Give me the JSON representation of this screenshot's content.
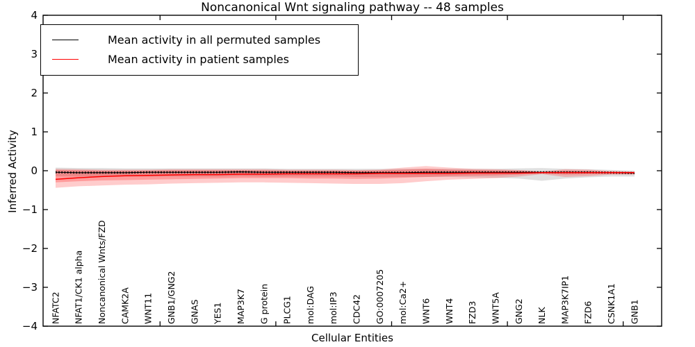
{
  "title": "Noncanonical Wnt signaling pathway -- 48 samples",
  "axes": {
    "x_label": "Cellular Entities",
    "y_label": "Inferred Activity"
  },
  "legend": {
    "items": [
      {
        "label": "Mean activity in all permuted samples",
        "color": "#000000"
      },
      {
        "label": "Mean activity in patient samples",
        "color": "#ff0000"
      }
    ]
  },
  "colors": {
    "permuted_line": "#000000",
    "patient_line": "#ff0000",
    "permuted_band": "#bbbbbb",
    "patient_band": "#ff0000",
    "frame": "#000000"
  },
  "chart_data": {
    "type": "line",
    "title": "Noncanonical Wnt signaling pathway -- 48 samples",
    "xlabel": "Cellular Entities",
    "ylabel": "Inferred Activity",
    "ylim": [
      -4,
      4
    ],
    "y_ticks": [
      -4,
      -3,
      -2,
      -1,
      0,
      1,
      2,
      3,
      4
    ],
    "major_tick_indices": [
      4,
      9,
      14,
      19,
      24
    ],
    "grid": false,
    "legend_position": "upper left",
    "categories": [
      "NFATC2",
      "NFAT1/CK1 alpha",
      "Noncanonical Wnts/FZD",
      "CAMK2A",
      "WNT11",
      "GNB1/GNG2",
      "GNAS",
      "YES1",
      "MAP3K7",
      "G protein",
      "PLCG1",
      "mol:DAG",
      "mol:IP3",
      "CDC42",
      "GO:0007205",
      "mol:Ca2+",
      "WNT6",
      "WNT4",
      "FZD3",
      "WNT5A",
      "GNG2",
      "NLK",
      "MAP3K7IP1",
      "FZD6",
      "CSNK1A1",
      "GNB1"
    ],
    "series": [
      {
        "name": "Mean activity in all permuted samples",
        "color": "#000000",
        "values": [
          -0.04,
          -0.05,
          -0.05,
          -0.05,
          -0.04,
          -0.04,
          -0.04,
          -0.04,
          -0.03,
          -0.04,
          -0.04,
          -0.04,
          -0.04,
          -0.05,
          -0.05,
          -0.05,
          -0.04,
          -0.04,
          -0.04,
          -0.04,
          -0.04,
          -0.04,
          -0.04,
          -0.04,
          -0.05,
          -0.06
        ]
      },
      {
        "name": "Mean activity in patient samples",
        "color": "#ff0000",
        "values": [
          -0.22,
          -0.18,
          -0.15,
          -0.13,
          -0.12,
          -0.11,
          -0.1,
          -0.1,
          -0.09,
          -0.09,
          -0.08,
          -0.08,
          -0.08,
          -0.08,
          -0.07,
          -0.07,
          -0.07,
          -0.07,
          -0.06,
          -0.06,
          -0.06,
          -0.05,
          -0.05,
          -0.05,
          -0.05,
          -0.05
        ]
      }
    ],
    "bands": {
      "permuted": {
        "hi": [
          0.08,
          0.07,
          0.07,
          0.06,
          0.06,
          0.06,
          0.06,
          0.06,
          0.06,
          0.06,
          0.05,
          0.05,
          0.05,
          0.05,
          0.05,
          0.05,
          0.05,
          0.05,
          0.05,
          0.05,
          0.06,
          0.07,
          0.05,
          0.04,
          0.02,
          0.0
        ],
        "lo": [
          -0.14,
          -0.15,
          -0.15,
          -0.15,
          -0.15,
          -0.15,
          -0.15,
          -0.15,
          -0.14,
          -0.15,
          -0.15,
          -0.15,
          -0.15,
          -0.16,
          -0.16,
          -0.16,
          -0.16,
          -0.16,
          -0.17,
          -0.18,
          -0.2,
          -0.26,
          -0.2,
          -0.17,
          -0.15,
          -0.15
        ]
      },
      "patient_outer": {
        "hi": [
          0.05,
          0.04,
          0.03,
          0.03,
          0.03,
          0.04,
          0.04,
          0.04,
          0.04,
          0.04,
          0.03,
          0.03,
          0.03,
          0.02,
          0.03,
          0.08,
          0.12,
          0.08,
          0.05,
          0.04,
          0.02,
          -0.02,
          0.04,
          0.03,
          -0.01,
          -0.02
        ],
        "lo": [
          -0.44,
          -0.4,
          -0.38,
          -0.36,
          -0.35,
          -0.33,
          -0.32,
          -0.31,
          -0.3,
          -0.3,
          -0.31,
          -0.32,
          -0.33,
          -0.34,
          -0.34,
          -0.32,
          -0.27,
          -0.23,
          -0.21,
          -0.19,
          -0.15,
          -0.09,
          -0.16,
          -0.14,
          -0.1,
          -0.1
        ]
      },
      "patient_inner": {
        "hi": [
          0.02,
          0.01,
          0.0,
          0.0,
          0.0,
          0.01,
          0.01,
          0.01,
          0.01,
          0.01,
          0.0,
          0.0,
          0.0,
          0.0,
          0.01,
          0.03,
          0.05,
          0.03,
          0.02,
          0.01,
          0.0,
          -0.03,
          0.0,
          -0.01,
          -0.02,
          -0.03
        ],
        "lo": [
          -0.3,
          -0.27,
          -0.25,
          -0.24,
          -0.23,
          -0.22,
          -0.21,
          -0.2,
          -0.19,
          -0.19,
          -0.19,
          -0.2,
          -0.2,
          -0.21,
          -0.2,
          -0.18,
          -0.16,
          -0.14,
          -0.13,
          -0.12,
          -0.1,
          -0.07,
          -0.1,
          -0.09,
          -0.08,
          -0.08
        ]
      }
    }
  }
}
